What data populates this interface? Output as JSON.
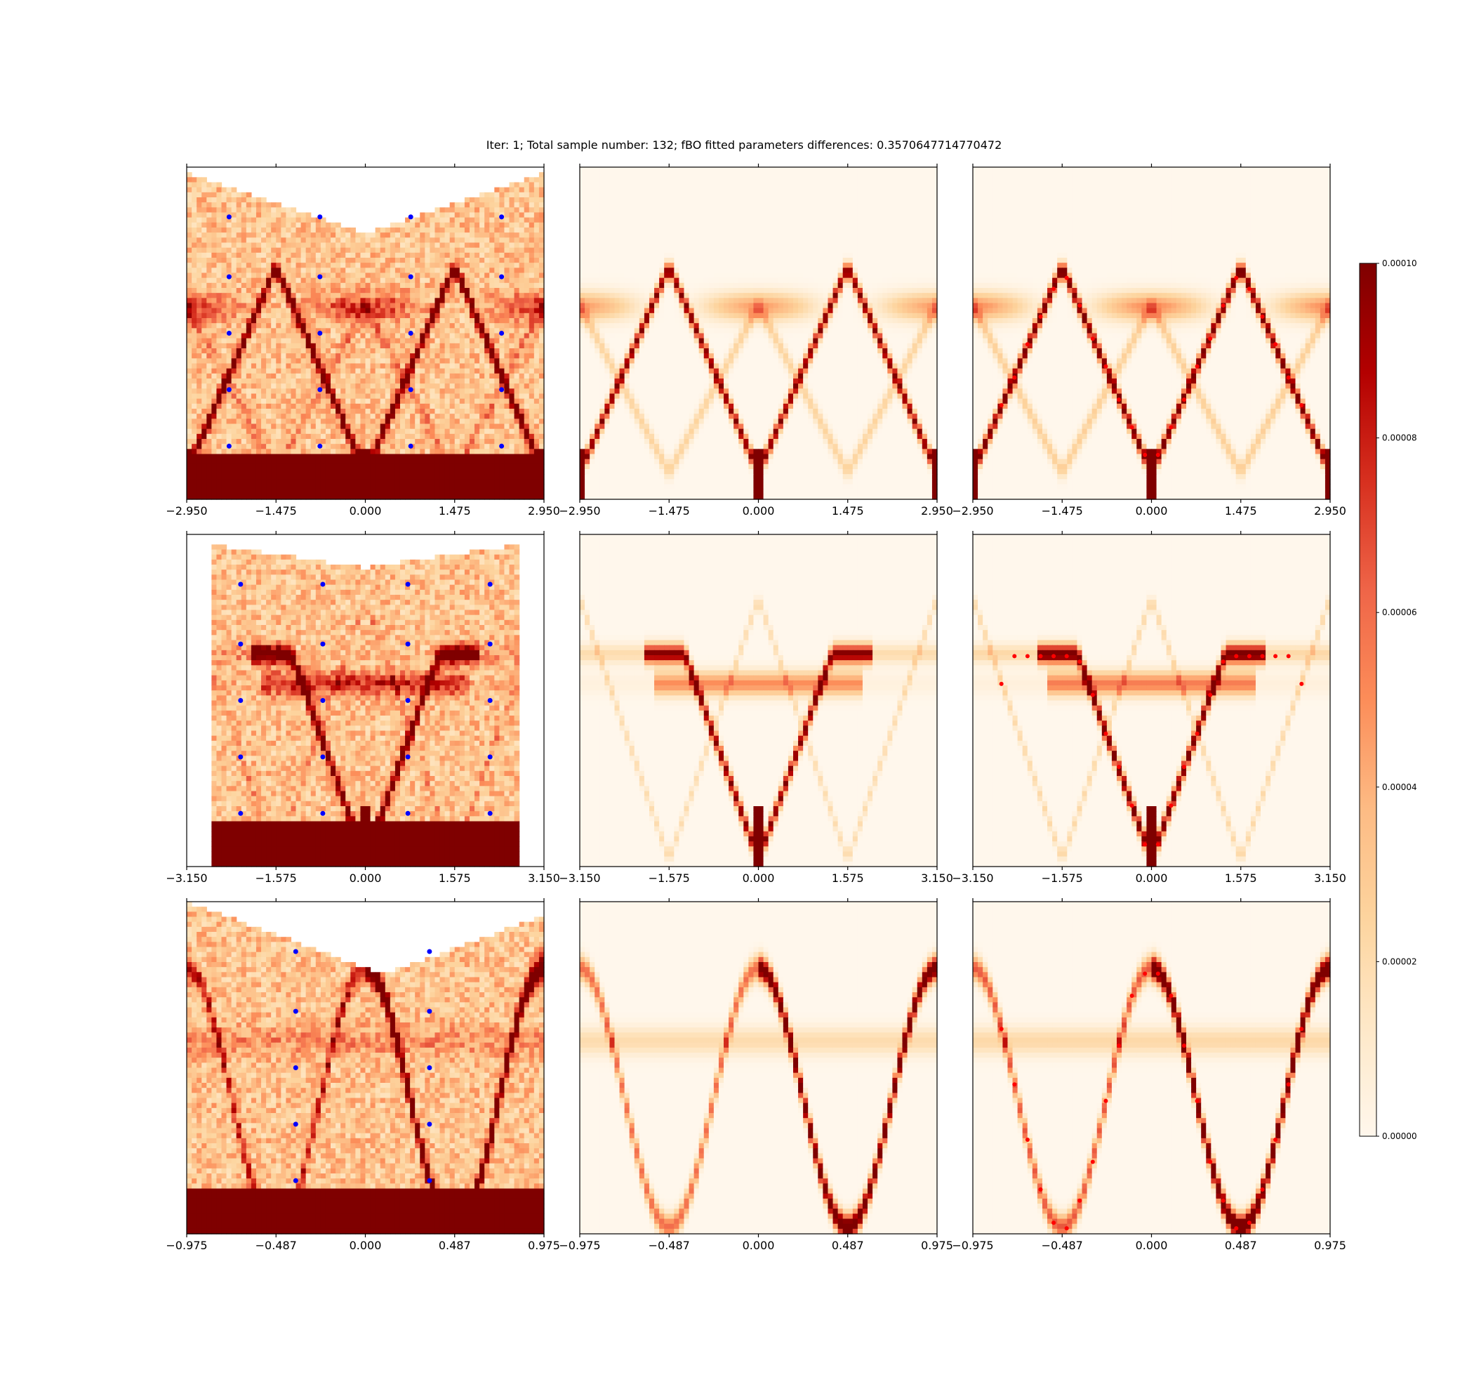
{
  "figure": {
    "title": "Iter: 1;  Total sample number: 132;  fBO fitted parameters differences: 0.3570647714770472"
  },
  "colors": {
    "colormap": "OrRd",
    "cmap_stops": [
      "#fff7ec",
      "#fee8c8",
      "#fdd49e",
      "#fdbb84",
      "#fc8d59",
      "#ef6548",
      "#d7301f",
      "#b30000",
      "#7f0000"
    ],
    "sample_points": "#0000ff",
    "fitted_points": "#ff0000"
  },
  "chart_data": {
    "type": "heatmap",
    "grid": {
      "rows": 3,
      "cols": 3,
      "col_roles": [
        "measured",
        "model",
        "fitted"
      ]
    },
    "rows": [
      {
        "xlim": [
          -2.95,
          2.95
        ],
        "xticks": [
          "−2.950",
          "−1.475",
          "0.000",
          "1.475",
          "2.950"
        ],
        "tick_values": [
          -2.95,
          -1.475,
          0,
          1.475,
          2.95
        ],
        "sample_x": [
          -2.25,
          -0.75,
          0.75,
          2.25
        ],
        "sample_y": [
          0.15,
          0.33,
          0.5,
          0.67,
          0.84
        ]
      },
      {
        "xlim": [
          -3.15,
          3.15
        ],
        "xticks": [
          "−3.150",
          "−1.575",
          "0.000",
          "1.575",
          "3.150"
        ],
        "tick_values": [
          -3.15,
          -1.575,
          0,
          1.575,
          3.15
        ],
        "sample_x": [
          -2.2,
          -0.75,
          0.75,
          2.2
        ],
        "sample_y": [
          0.15,
          0.33,
          0.5,
          0.67,
          0.84
        ]
      },
      {
        "xlim": [
          -0.975,
          0.975
        ],
        "xticks": [
          "−0.975",
          "−0.487",
          "0.000",
          "0.487",
          "0.975"
        ],
        "tick_values": [
          -0.975,
          -0.4875,
          0,
          0.4875,
          0.975
        ],
        "sample_x": [
          -0.38,
          0.35
        ],
        "sample_y": [
          0.15,
          0.33,
          0.5,
          0.67,
          0.84
        ]
      }
    ],
    "colorbar": {
      "min": 0.0,
      "max": 0.0001,
      "ticks": [
        "0.00000",
        "0.00002",
        "0.00004",
        "0.00006",
        "0.00008",
        "0.00010"
      ],
      "tick_values": [
        0,
        2e-05,
        4e-05,
        6e-05,
        8e-05,
        0.0001
      ]
    }
  }
}
